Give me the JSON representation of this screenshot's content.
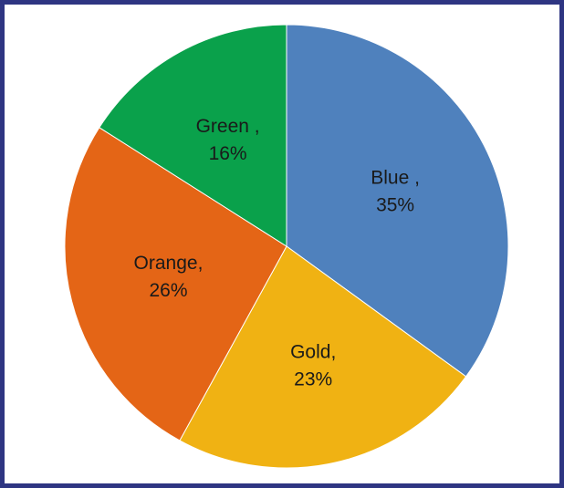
{
  "chart_data": {
    "type": "pie",
    "start_angle_deg": 0,
    "direction": "clockwise",
    "slices": [
      {
        "category": "Blue",
        "value": 35,
        "label_lines": [
          "Blue ,",
          "35%"
        ],
        "color": "#4f81bd"
      },
      {
        "category": "Gold",
        "value": 23,
        "label_lines": [
          "Gold,",
          "23%"
        ],
        "color": "#f0b213"
      },
      {
        "category": "Orange",
        "value": 26,
        "label_lines": [
          "Orange,",
          "26%"
        ],
        "color": "#e46516"
      },
      {
        "category": "Green",
        "value": 16,
        "label_lines": [
          "Green ,",
          "16%"
        ],
        "color": "#0aa14b"
      }
    ]
  }
}
